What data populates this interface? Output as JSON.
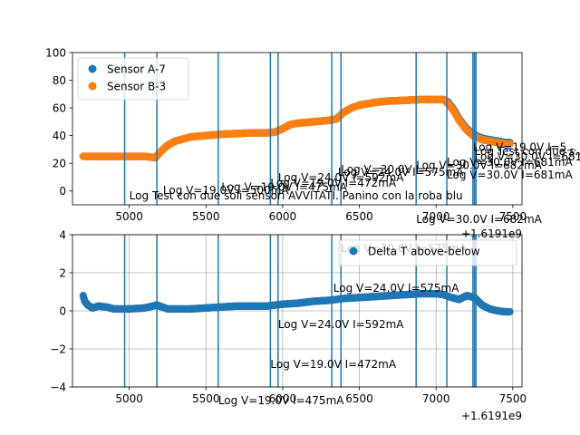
{
  "chart_data": [
    {
      "type": "scatter",
      "title": "",
      "xlabel": "",
      "ylabel": "",
      "x_offset_label": "+1.6191e9",
      "xlim": [
        4630,
        7560
      ],
      "ylim": [
        -10,
        100
      ],
      "x_ticks": [
        5000,
        5500,
        6000,
        6500,
        7000,
        7500
      ],
      "x_tick_labels": [
        "5000",
        "5500",
        "6000",
        "6500",
        "7000",
        "7500"
      ],
      "y_ticks": [
        0,
        20,
        40,
        60,
        80,
        100
      ],
      "y_tick_labels": [
        "0",
        "20",
        "40",
        "60",
        "80",
        "100"
      ],
      "grid": false,
      "legend_position": "upper-left",
      "series": [
        {
          "name": "Sensor A-7",
          "color": "#1f77b4",
          "points": [
            [
              4700,
              25
            ],
            [
              4800,
              25
            ],
            [
              4900,
              25
            ],
            [
              5000,
              25
            ],
            [
              5100,
              25
            ],
            [
              5170,
              24
            ],
            [
              5200,
              28
            ],
            [
              5250,
              33
            ],
            [
              5300,
              36
            ],
            [
              5400,
              39
            ],
            [
              5500,
              40
            ],
            [
              5600,
              41
            ],
            [
              5700,
              41.5
            ],
            [
              5800,
              42
            ],
            [
              5900,
              42
            ],
            [
              5950,
              42.5
            ],
            [
              6000,
              45
            ],
            [
              6050,
              48
            ],
            [
              6100,
              49
            ],
            [
              6200,
              50
            ],
            [
              6300,
              51
            ],
            [
              6350,
              52
            ],
            [
              6400,
              57
            ],
            [
              6450,
              60
            ],
            [
              6500,
              62
            ],
            [
              6600,
              64
            ],
            [
              6700,
              65
            ],
            [
              6800,
              65.5
            ],
            [
              6900,
              66
            ],
            [
              7000,
              66
            ],
            [
              7050,
              66
            ],
            [
              7080,
              64
            ],
            [
              7120,
              58
            ],
            [
              7150,
              52
            ],
            [
              7200,
              45
            ],
            [
              7240,
              41
            ],
            [
              7260,
              40
            ],
            [
              7300,
              38
            ],
            [
              7350,
              37
            ],
            [
              7400,
              36
            ],
            [
              7450,
              35
            ],
            [
              7480,
              35
            ]
          ]
        },
        {
          "name": "Sensor B-3",
          "color": "#ff7f0e",
          "points": [
            [
              4700,
              25
            ],
            [
              4800,
              25
            ],
            [
              4900,
              25
            ],
            [
              5000,
              25
            ],
            [
              5100,
              25
            ],
            [
              5170,
              24
            ],
            [
              5200,
              28
            ],
            [
              5250,
              33
            ],
            [
              5300,
              36
            ],
            [
              5400,
              39
            ],
            [
              5500,
              40
            ],
            [
              5600,
              41
            ],
            [
              5700,
              41.5
            ],
            [
              5800,
              42
            ],
            [
              5900,
              42
            ],
            [
              5950,
              42.5
            ],
            [
              6000,
              45
            ],
            [
              6050,
              48
            ],
            [
              6100,
              49
            ],
            [
              6200,
              50
            ],
            [
              6300,
              51
            ],
            [
              6350,
              52
            ],
            [
              6400,
              57
            ],
            [
              6450,
              60
            ],
            [
              6500,
              62
            ],
            [
              6600,
              64
            ],
            [
              6700,
              65
            ],
            [
              6800,
              65.5
            ],
            [
              6900,
              66
            ],
            [
              7000,
              66
            ],
            [
              7050,
              66
            ],
            [
              7080,
              63
            ],
            [
              7120,
              57
            ],
            [
              7150,
              51
            ],
            [
              7200,
              44
            ],
            [
              7240,
              40
            ],
            [
              7260,
              39
            ],
            [
              7300,
              37
            ],
            [
              7350,
              36
            ],
            [
              7400,
              35
            ],
            [
              7450,
              34
            ],
            [
              7480,
              34
            ]
          ]
        }
      ],
      "event_lines": [
        4970,
        5180,
        5580,
        5920,
        5970,
        6320,
        6380,
        6870,
        7070,
        7240,
        7250,
        7260
      ],
      "annotations": [
        {
          "x": 5000,
          "y": -6,
          "text": "Log Test con due soli sensori AVVITATI. Panino con la roba blu"
        },
        {
          "x": 5220,
          "y": -2,
          "text": "Log V=19.0V I=500mA"
        },
        {
          "x": 5600,
          "y": 0,
          "text": "Log V=19.0V I=475mA"
        },
        {
          "x": 5920,
          "y": 3,
          "text": "Log V=19.0V I=472mA"
        },
        {
          "x": 5970,
          "y": 7,
          "text": "Log V=24.0V I=592mA"
        },
        {
          "x": 6360,
          "y": 11,
          "text": "Log V=24.0V I=575mA"
        },
        {
          "x": 6380,
          "y": 13,
          "text": "Log V=30.0V I=..."
        },
        {
          "x": 6870,
          "y": 16,
          "text": "Log V=30.0V I=682mA"
        },
        {
          "x": 7070,
          "y": 18,
          "text": "Log V=30.0V I=681mA"
        },
        {
          "x": 7070,
          "y": 9,
          "text": "Log V=30.0V I=681mA"
        },
        {
          "x": 6870,
          "y": -23,
          "text": "Log V=30.0V I=682mA"
        },
        {
          "x": 7240,
          "y": 29,
          "text": "Log V=19.0V I=5..."
        },
        {
          "x": 7250,
          "y": 26,
          "text": "Log Test con due s..."
        },
        {
          "x": 7250,
          "y": 22,
          "text": "Log V=30.0V I=681mA"
        }
      ]
    },
    {
      "type": "scatter",
      "title": "",
      "xlabel": "",
      "ylabel": "",
      "x_offset_label": "+1.6191e9",
      "xlim": [
        4630,
        7560
      ],
      "ylim": [
        -4,
        4
      ],
      "x_ticks": [
        5000,
        5500,
        6000,
        6500,
        7000,
        7500
      ],
      "x_tick_labels": [
        "5000",
        "5500",
        "6000",
        "6500",
        "7000",
        "7500"
      ],
      "y_ticks": [
        -4,
        -2,
        0,
        2,
        4
      ],
      "y_tick_labels": [
        "−4",
        "−2",
        "0",
        "2",
        "4"
      ],
      "grid": true,
      "legend_position": "upper-right",
      "series": [
        {
          "name": "Delta T above-below",
          "color": "#1f77b4",
          "points": [
            [
              4700,
              0.8
            ],
            [
              4710,
              0.5
            ],
            [
              4730,
              0.3
            ],
            [
              4760,
              0.15
            ],
            [
              4800,
              0.25
            ],
            [
              4850,
              0.2
            ],
            [
              4900,
              0.1
            ],
            [
              5000,
              0.1
            ],
            [
              5100,
              0.15
            ],
            [
              5180,
              0.3
            ],
            [
              5250,
              0.1
            ],
            [
              5300,
              0.1
            ],
            [
              5400,
              0.1
            ],
            [
              5500,
              0.15
            ],
            [
              5600,
              0.2
            ],
            [
              5700,
              0.25
            ],
            [
              5800,
              0.25
            ],
            [
              5900,
              0.25
            ],
            [
              5950,
              0.3
            ],
            [
              6000,
              0.35
            ],
            [
              6100,
              0.4
            ],
            [
              6200,
              0.5
            ],
            [
              6300,
              0.55
            ],
            [
              6350,
              0.6
            ],
            [
              6400,
              0.65
            ],
            [
              6500,
              0.7
            ],
            [
              6600,
              0.75
            ],
            [
              6700,
              0.8
            ],
            [
              6800,
              0.85
            ],
            [
              6900,
              0.9
            ],
            [
              7000,
              0.9
            ],
            [
              7050,
              0.85
            ],
            [
              7100,
              0.7
            ],
            [
              7150,
              0.6
            ],
            [
              7200,
              0.8
            ],
            [
              7250,
              0.7
            ],
            [
              7300,
              0.3
            ],
            [
              7350,
              0.1
            ],
            [
              7400,
              0.0
            ],
            [
              7450,
              -0.05
            ],
            [
              7480,
              -0.05
            ]
          ]
        }
      ],
      "event_lines": [
        4970,
        5180,
        5580,
        5920,
        5970,
        6320,
        6380,
        6870,
        7070,
        7240,
        7250,
        7260
      ],
      "annotations": [
        {
          "x": 6330,
          "y": 1.0,
          "text": "Log V=24.0V I=575mA"
        },
        {
          "x": 5970,
          "y": -0.9,
          "text": "Log V=24.0V I=592mA"
        },
        {
          "x": 5920,
          "y": -3.0,
          "text": "Log V=19.0V I=472mA"
        },
        {
          "x": 5580,
          "y": -4.9,
          "text": "Log V=19.0V I=475mA"
        },
        {
          "x": 6380,
          "y": 3.1,
          "text": "Log V=30.0V I=575mA"
        }
      ]
    }
  ]
}
